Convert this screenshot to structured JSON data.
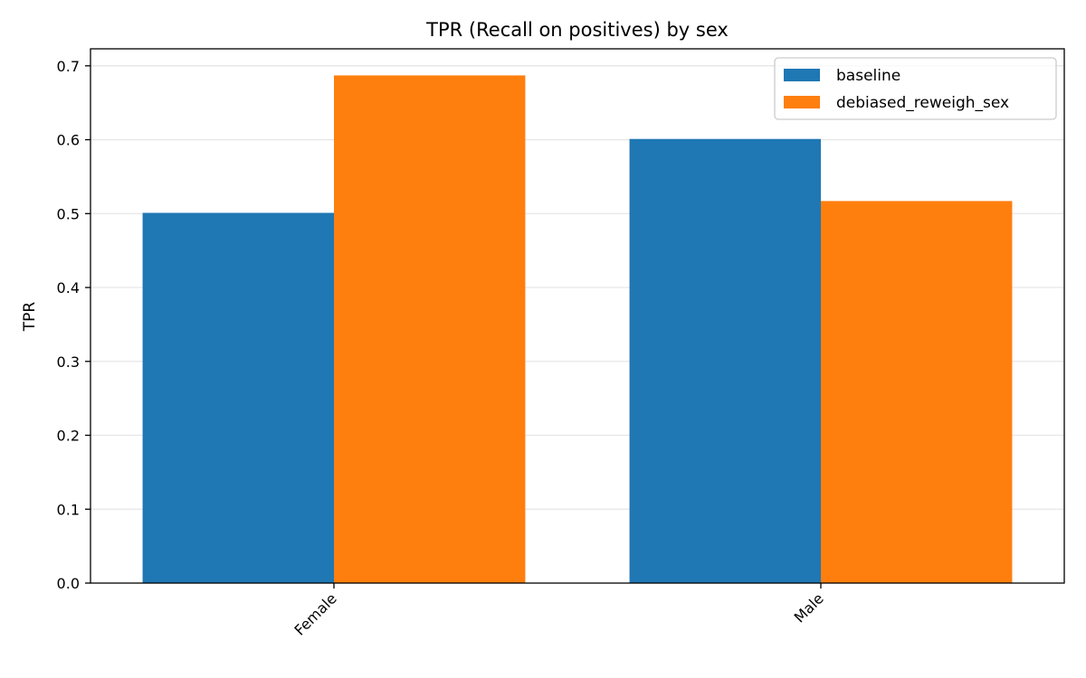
{
  "chart_data": {
    "type": "bar",
    "title": "TPR (Recall on positives) by sex",
    "xlabel": "",
    "ylabel": "TPR",
    "categories": [
      "Female",
      "Male"
    ],
    "series": [
      {
        "name": "baseline",
        "values": [
          0.501,
          0.601
        ],
        "color": "#1f77b4"
      },
      {
        "name": "debiased_reweigh_sex",
        "values": [
          0.687,
          0.517
        ],
        "color": "#ff7f0e"
      }
    ],
    "ylim": [
      0,
      0.723
    ],
    "yticks": [
      0.0,
      0.1,
      0.2,
      0.3,
      0.4,
      0.5,
      0.6,
      0.7
    ],
    "ytick_labels": [
      "0.0",
      "0.1",
      "0.2",
      "0.3",
      "0.4",
      "0.5",
      "0.6",
      "0.7"
    ],
    "grid": "horizontal",
    "legend": "top-right"
  }
}
